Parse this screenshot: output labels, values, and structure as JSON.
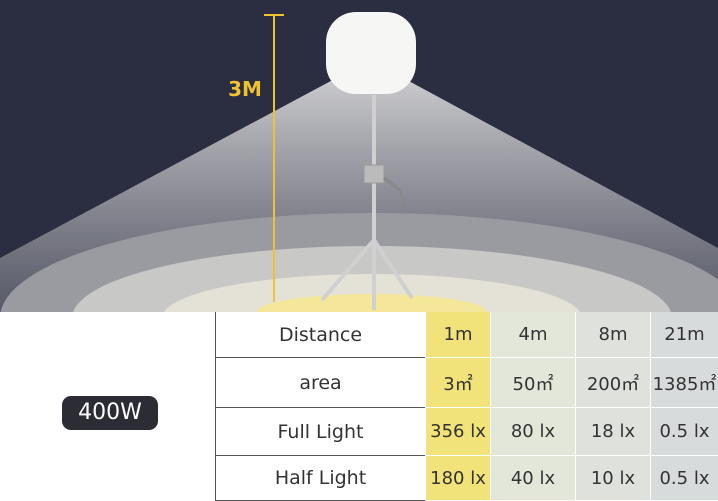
{
  "height_label": "3M",
  "power": "400W",
  "table": {
    "rows": [
      [
        "Distance",
        "1m",
        "4m",
        "8m",
        "21m"
      ],
      [
        "area",
        "3㎡",
        "50㎡",
        "200㎡",
        "1385㎡"
      ],
      [
        "Full Light",
        "356 lx",
        "80 lx",
        "18 lx",
        "0.5 lx"
      ],
      [
        "Half Light",
        "180 lx",
        "40 lx",
        "10 lx",
        "0.5 lx"
      ]
    ]
  }
}
